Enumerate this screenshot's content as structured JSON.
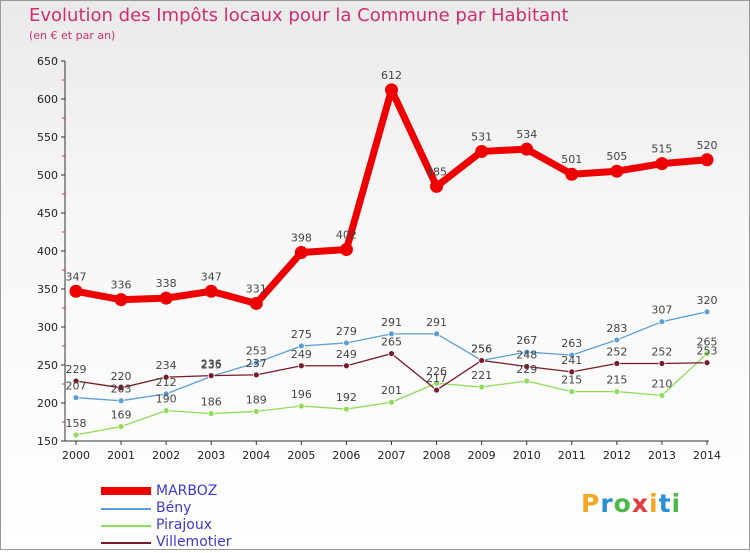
{
  "header": {
    "title": "Evolution des Impôts locaux pour la Commune par Habitant",
    "subtitle": "(en € et par an)"
  },
  "logo": {
    "text": "Proxiti",
    "letters": [
      {
        "ch": "P",
        "color": "#f5a623"
      },
      {
        "ch": "r",
        "color": "#2a8fd6"
      },
      {
        "ch": "o",
        "color": "#4db848"
      },
      {
        "ch": "x",
        "color": "#e8383d"
      },
      {
        "ch": "i",
        "color": "#f5a623"
      },
      {
        "ch": "t",
        "color": "#2a8fd6"
      },
      {
        "ch": "i",
        "color": "#4db848"
      }
    ]
  },
  "chart_data": {
    "type": "line",
    "title": "Evolution des Impôts locaux pour la Commune par Habitant",
    "subtitle": "(en € et par an)",
    "xlabel": "",
    "ylabel": "",
    "ylim": [
      150,
      650
    ],
    "yticks": [
      150,
      200,
      250,
      300,
      350,
      400,
      450,
      500,
      550,
      600,
      650
    ],
    "grid": false,
    "legend": "bottom-left",
    "categories": [
      "2000",
      "2001",
      "2002",
      "2003",
      "2004",
      "2005",
      "2006",
      "2007",
      "2008",
      "2009",
      "2010",
      "2011",
      "2012",
      "2013",
      "2014"
    ],
    "series": [
      {
        "name": "MARBOZ",
        "color": "#ee0000",
        "values": [
          347,
          336,
          338,
          347,
          331,
          398,
          402,
          612,
          485,
          531,
          534,
          501,
          505,
          515,
          520
        ]
      },
      {
        "name": "Bény",
        "color": "#5b9fd6",
        "values": [
          207,
          203,
          212,
          235,
          253,
          275,
          279,
          291,
          291,
          256,
          267,
          263,
          283,
          307,
          320
        ]
      },
      {
        "name": "Pirajoux",
        "color": "#8fdc5a",
        "values": [
          158,
          169,
          190,
          186,
          189,
          196,
          192,
          201,
          226,
          221,
          229,
          215,
          215,
          210,
          265
        ]
      },
      {
        "name": "Villemotier",
        "color": "#7a1a28",
        "values": [
          229,
          220,
          234,
          236,
          237,
          249,
          249,
          265,
          217,
          256,
          248,
          241,
          252,
          252,
          253
        ]
      }
    ]
  }
}
